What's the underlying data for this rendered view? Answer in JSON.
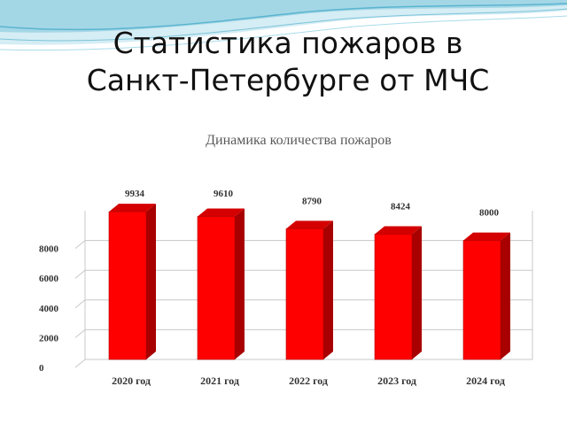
{
  "slide": {
    "title_line1": "Статистика пожаров в",
    "title_line2": "Санкт-Петербурге от МЧС"
  },
  "theme": {
    "bar_front": "#ff0000",
    "bar_top": "#d40000",
    "bar_side": "#a80000",
    "wave_color": "#5ab4d0"
  },
  "chart_data": {
    "type": "bar",
    "title": "Динамика количества пожаров",
    "categories": [
      "2020 год",
      "2021 год",
      "2022 год",
      "2023 год",
      "2024 год"
    ],
    "values": [
      9934,
      9610,
      8790,
      8424,
      8000
    ],
    "data_labels": [
      "9934",
      "9610",
      "8790",
      "8424",
      "8000"
    ],
    "y_ticks": [
      0,
      2000,
      4000,
      6000,
      8000
    ],
    "ylim": [
      0,
      10000
    ],
    "grid": true,
    "legend": "none",
    "style": "3d"
  }
}
